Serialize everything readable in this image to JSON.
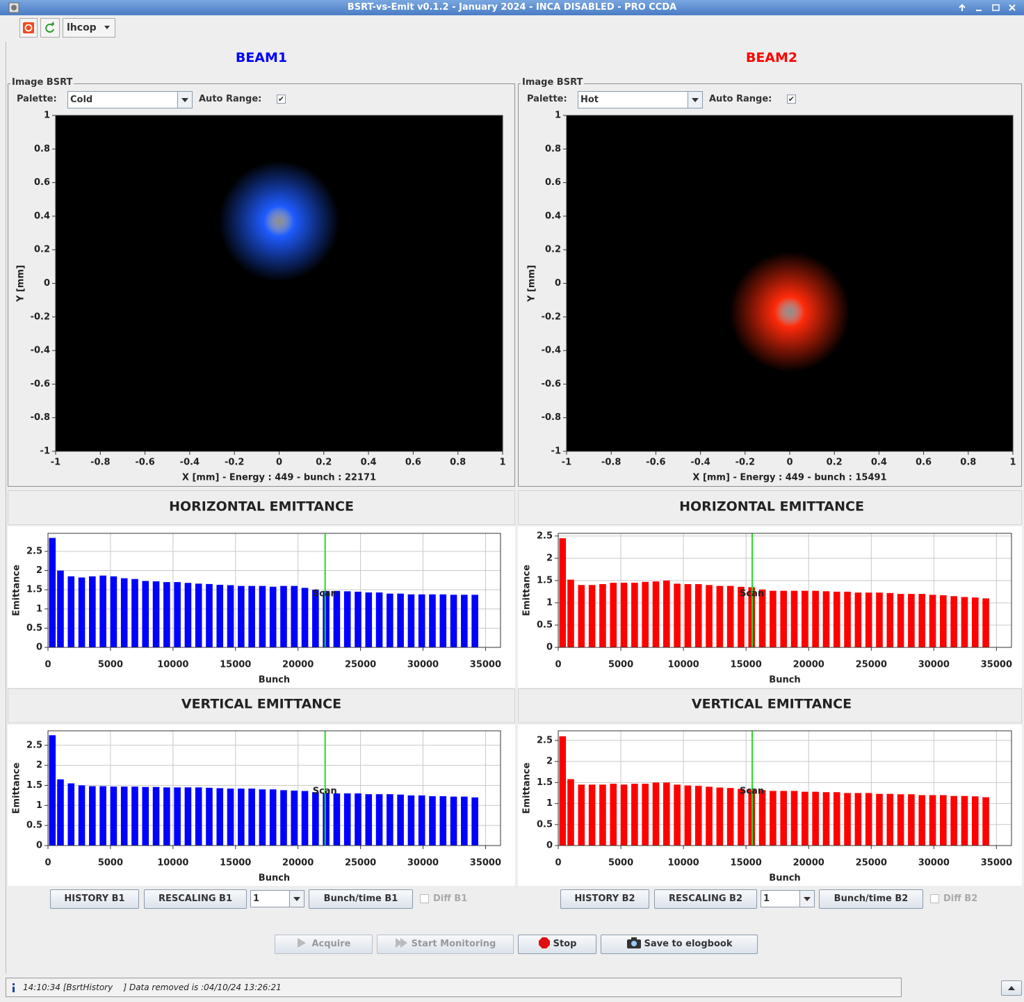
{
  "ui": {
    "window_title": "BSRT-vs-Emit v0.1.2 - January 2024 -  INCA DISABLED - PRO CCDA",
    "user": "lhcop",
    "beams": [
      {
        "title": "BEAM1",
        "color": "#0000ff",
        "panel_title": "Image BSRT",
        "palette_label": "Palette:",
        "palette": "Cold",
        "auto_range_label": "Auto Range:",
        "auto_range": true,
        "history": "HISTORY B1",
        "rescaling": "RESCALING B1",
        "combo": "1",
        "bunch_time": "Bunch/time B1",
        "diff": "Diff B1"
      },
      {
        "title": "BEAM2",
        "color": "#ff0000",
        "panel_title": "Image BSRT",
        "palette_label": "Palette:",
        "palette": "Hot",
        "auto_range_label": "Auto Range:",
        "auto_range": true,
        "history": "HISTORY B2",
        "rescaling": "RESCALING B2",
        "combo": "1",
        "bunch_time": "Bunch/time B2",
        "diff": "Diff B2"
      }
    ],
    "actions": [
      "Acquire",
      "Start Monitoring",
      "Stop",
      "Save to elogbook"
    ],
    "status": "14:10:34 [BsrtHistory    ] Data removed is :04/10/24 13:26:21"
  },
  "chart_data": [
    {
      "type": "image",
      "xlabel": "X [mm] - Energy : 449 - bunch : 22171",
      "ylabel": "Y [mm]",
      "xlim": [
        -1,
        1
      ],
      "ylim": [
        -1,
        1
      ],
      "xticks": [
        -1,
        -0.8,
        -0.6,
        -0.4,
        -0.2,
        0,
        0.2,
        0.4,
        0.6,
        0.8,
        1
      ],
      "yticks": [
        -1,
        -0.8,
        -0.6,
        -0.4,
        -0.2,
        0,
        0.2,
        0.4,
        0.6,
        0.8,
        1
      ],
      "spot": {
        "x": 0,
        "y": 0.37,
        "sigma": 0.09
      },
      "color": "#1e5bff"
    },
    {
      "type": "image",
      "xlabel": "X [mm] - Energy : 449 - bunch : 15491",
      "ylabel": "Y [mm]",
      "xlim": [
        -1,
        1
      ],
      "ylim": [
        -1,
        1
      ],
      "xticks": [
        -1,
        -0.8,
        -0.6,
        -0.4,
        -0.2,
        0,
        0.2,
        0.4,
        0.6,
        0.8,
        1
      ],
      "yticks": [
        -1,
        -0.8,
        -0.6,
        -0.4,
        -0.2,
        0,
        0.2,
        0.4,
        0.6,
        0.8,
        1
      ],
      "spot": {
        "x": 0,
        "y": -0.17,
        "sigma": 0.09
      },
      "color": "#ff2a0a"
    },
    {
      "type": "bar",
      "title": "HORIZONTAL EMITTANCE",
      "title_color": "#0000ff",
      "xlabel": "Bunch",
      "ylabel": "Emittance",
      "color": "#0000ff",
      "grid": true,
      "xlim": [
        0,
        36200
      ],
      "ylim": [
        0,
        2.97
      ],
      "xticks": [
        0,
        5000,
        10000,
        15000,
        20000,
        25000,
        30000,
        35000
      ],
      "yticks": [
        0,
        0.5,
        1,
        1.5,
        2,
        2.5
      ],
      "x": [
        350,
        1000,
        1850,
        2700,
        3550,
        4400,
        5250,
        6100,
        6950,
        7800,
        8650,
        9500,
        10350,
        11200,
        12050,
        12900,
        13750,
        14600,
        15450,
        16300,
        17150,
        18000,
        18850,
        19700,
        20550,
        21400,
        22250,
        23100,
        23950,
        24800,
        25650,
        26500,
        27350,
        28200,
        29050,
        29900,
        30750,
        31600,
        32450,
        33300,
        34150
      ],
      "values": [
        2.85,
        2.0,
        1.85,
        1.82,
        1.85,
        1.87,
        1.85,
        1.8,
        1.78,
        1.73,
        1.72,
        1.7,
        1.7,
        1.68,
        1.66,
        1.65,
        1.63,
        1.62,
        1.6,
        1.6,
        1.6,
        1.58,
        1.6,
        1.6,
        1.55,
        1.5,
        1.47,
        1.47,
        1.46,
        1.45,
        1.43,
        1.43,
        1.4,
        1.4,
        1.38,
        1.38,
        1.38,
        1.38,
        1.37,
        1.37,
        1.37
      ],
      "scan": {
        "x": 22171,
        "label": "Scan",
        "color": "#22dd22"
      }
    },
    {
      "type": "bar",
      "title": "HORIZONTAL EMITTANCE",
      "title_color": "#ff0000",
      "xlabel": "Bunch",
      "ylabel": "Emittance",
      "color": "#ff0000",
      "grid": true,
      "xlim": [
        0,
        36200
      ],
      "ylim": [
        0,
        2.56
      ],
      "xticks": [
        0,
        5000,
        10000,
        15000,
        20000,
        25000,
        30000,
        35000
      ],
      "yticks": [
        0,
        0.5,
        1,
        1.5,
        2,
        2.5
      ],
      "x": [
        350,
        1000,
        1850,
        2700,
        3550,
        4400,
        5250,
        6100,
        6950,
        7800,
        8650,
        9500,
        10350,
        11200,
        12050,
        12900,
        13750,
        14600,
        15450,
        16300,
        17150,
        18000,
        18850,
        19700,
        20550,
        21400,
        22250,
        23100,
        23950,
        24800,
        25650,
        26500,
        27350,
        28200,
        29050,
        29900,
        30750,
        31600,
        32450,
        33300,
        34150
      ],
      "values": [
        2.45,
        1.52,
        1.4,
        1.4,
        1.42,
        1.45,
        1.45,
        1.45,
        1.47,
        1.48,
        1.5,
        1.43,
        1.42,
        1.42,
        1.4,
        1.38,
        1.38,
        1.36,
        1.35,
        1.3,
        1.27,
        1.27,
        1.27,
        1.27,
        1.27,
        1.26,
        1.25,
        1.25,
        1.23,
        1.23,
        1.23,
        1.22,
        1.2,
        1.2,
        1.2,
        1.18,
        1.17,
        1.15,
        1.13,
        1.12,
        1.1
      ],
      "scan": {
        "x": 15491,
        "label": "Scan",
        "color": "#22dd22"
      }
    },
    {
      "type": "bar",
      "title": "VERTICAL EMITTANCE",
      "title_color": "#0000ff",
      "xlabel": "Bunch",
      "ylabel": "Emittance",
      "color": "#0000ff",
      "grid": true,
      "xlim": [
        0,
        36200
      ],
      "ylim": [
        0,
        2.86
      ],
      "xticks": [
        0,
        5000,
        10000,
        15000,
        20000,
        25000,
        30000,
        35000
      ],
      "yticks": [
        0,
        0.5,
        1,
        1.5,
        2,
        2.5
      ],
      "x": [
        350,
        1000,
        1850,
        2700,
        3550,
        4400,
        5250,
        6100,
        6950,
        7800,
        8650,
        9500,
        10350,
        11200,
        12050,
        12900,
        13750,
        14600,
        15450,
        16300,
        17150,
        18000,
        18850,
        19700,
        20550,
        21400,
        22250,
        23100,
        23950,
        24800,
        25650,
        26500,
        27350,
        28200,
        29050,
        29900,
        30750,
        31600,
        32450,
        33300,
        34150
      ],
      "values": [
        2.75,
        1.65,
        1.55,
        1.5,
        1.48,
        1.48,
        1.47,
        1.47,
        1.47,
        1.46,
        1.46,
        1.45,
        1.45,
        1.45,
        1.45,
        1.44,
        1.43,
        1.42,
        1.42,
        1.42,
        1.4,
        1.4,
        1.38,
        1.37,
        1.36,
        1.33,
        1.3,
        1.3,
        1.3,
        1.3,
        1.28,
        1.28,
        1.28,
        1.27,
        1.25,
        1.25,
        1.23,
        1.23,
        1.22,
        1.22,
        1.2
      ],
      "scan": {
        "x": 22171,
        "label": "Scan",
        "color": "#22dd22"
      }
    },
    {
      "type": "bar",
      "title": "VERTICAL EMITTANCE",
      "title_color": "#ff0000",
      "xlabel": "Bunch",
      "ylabel": "Emittance",
      "color": "#ff0000",
      "grid": true,
      "xlim": [
        0,
        36200
      ],
      "ylim": [
        0,
        2.73
      ],
      "xticks": [
        0,
        5000,
        10000,
        15000,
        20000,
        25000,
        30000,
        35000
      ],
      "yticks": [
        0,
        0.5,
        1,
        1.5,
        2,
        2.5
      ],
      "x": [
        350,
        1000,
        1850,
        2700,
        3550,
        4400,
        5250,
        6100,
        6950,
        7800,
        8650,
        9500,
        10350,
        11200,
        12050,
        12900,
        13750,
        14600,
        15450,
        16300,
        17150,
        18000,
        18850,
        19700,
        20550,
        21400,
        22250,
        23100,
        23950,
        24800,
        25650,
        26500,
        27350,
        28200,
        29050,
        29900,
        30750,
        31600,
        32450,
        33300,
        34150
      ],
      "values": [
        2.6,
        1.58,
        1.45,
        1.45,
        1.45,
        1.47,
        1.45,
        1.47,
        1.47,
        1.5,
        1.5,
        1.45,
        1.43,
        1.42,
        1.4,
        1.38,
        1.37,
        1.35,
        1.33,
        1.32,
        1.3,
        1.3,
        1.3,
        1.28,
        1.28,
        1.27,
        1.27,
        1.25,
        1.25,
        1.25,
        1.23,
        1.23,
        1.22,
        1.22,
        1.2,
        1.2,
        1.2,
        1.18,
        1.18,
        1.17,
        1.15
      ],
      "scan": {
        "x": 15491,
        "label": "Scan",
        "color": "#22dd22"
      }
    }
  ]
}
